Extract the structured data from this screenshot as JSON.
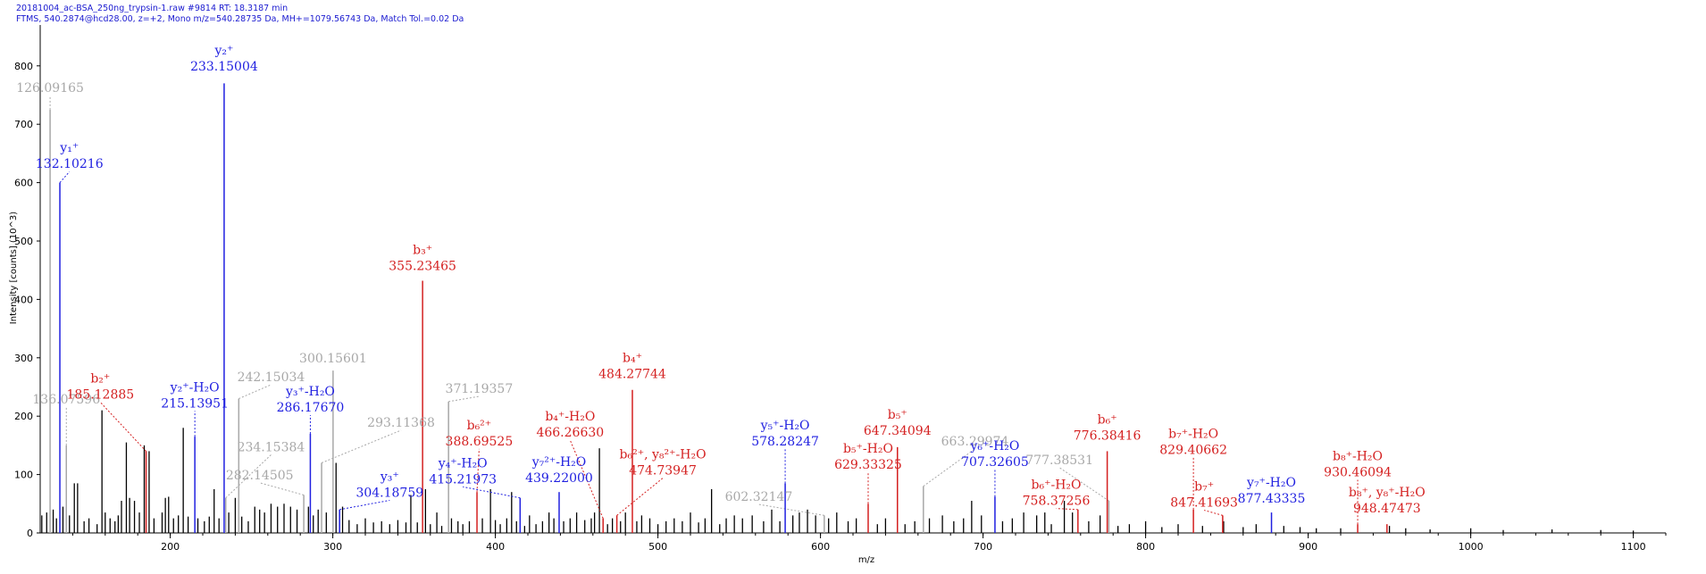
{
  "header": {
    "line1": "20181004_ac-BSA_250ng_trypsin-1.raw #9814  RT: 18.3187 min",
    "line2": "FTMS, 540.2874@hcd28.00, z=+2, Mono m/z=540.28735 Da, MH+=1079.56743 Da, Match Tol.=0.02 Da"
  },
  "colors": {
    "y_ion": "#2020e0",
    "b_ion": "#d42020",
    "unassigned": "#a8a8a8",
    "peak": "#000000"
  },
  "chart_data": {
    "type": "bar",
    "xlabel": "m/z",
    "ylabel": "Intensity [counts] (10^3)",
    "xlim": [
      120,
      1120
    ],
    "ylim": [
      0,
      870
    ],
    "xticks": [
      200,
      300,
      400,
      500,
      600,
      700,
      800,
      900,
      1000,
      1100
    ],
    "yticks": [
      0,
      100,
      200,
      300,
      400,
      500,
      600,
      700,
      800
    ],
    "peaks": [
      {
        "mz": 126.09165,
        "i": 725,
        "c": "g",
        "ion": "",
        "lbl": "126.09165",
        "lx": 126.09,
        "ly": 755
      },
      {
        "mz": 132.10216,
        "i": 600,
        "c": "y",
        "ion": "y₁⁺",
        "lbl": "132.10216",
        "lx": 138,
        "ly": 625
      },
      {
        "mz": 136.07596,
        "i": 150,
        "c": "g",
        "ion": "",
        "lbl": "136.07596",
        "lx": 136.08,
        "ly": 222
      },
      {
        "mz": 185.12885,
        "i": 140,
        "c": "b",
        "ion": "b₂⁺",
        "lbl": "185.12885",
        "lx": 157,
        "ly": 230
      },
      {
        "mz": 215.13951,
        "i": 165,
        "c": "y",
        "ion": "y₂⁺-H₂O",
        "lbl": "215.13951",
        "lx": 215.14,
        "ly": 215
      },
      {
        "mz": 233.15004,
        "i": 770,
        "c": "y",
        "ion": "y₂⁺",
        "lbl": "233.15004",
        "lx": 233.15,
        "ly": 792
      },
      {
        "mz": 234.15384,
        "i": 60,
        "c": "g",
        "ion": "",
        "lbl": "234.15384",
        "lx": 262,
        "ly": 140
      },
      {
        "mz": 242.15034,
        "i": 230,
        "c": "g",
        "ion": "",
        "lbl": "242.15034",
        "lx": 262,
        "ly": 260
      },
      {
        "mz": 282.14505,
        "i": 65,
        "c": "g",
        "ion": "",
        "lbl": "282.14505",
        "lx": 255,
        "ly": 92
      },
      {
        "mz": 286.1767,
        "i": 170,
        "c": "y",
        "ion": "y₃⁺-H₂O",
        "lbl": "286.17670",
        "lx": 286.18,
        "ly": 208
      },
      {
        "mz": 293.11368,
        "i": 120,
        "c": "g",
        "ion": "",
        "lbl": "293.11368",
        "lx": 342,
        "ly": 182
      },
      {
        "mz": 300.15601,
        "i": 278,
        "c": "g",
        "ion": "",
        "lbl": "300.15601",
        "lx": 300.16,
        "ly": 292
      },
      {
        "mz": 304.18759,
        "i": 40,
        "c": "y",
        "ion": "y₃⁺",
        "lbl": "304.18759",
        "lx": 335,
        "ly": 62
      },
      {
        "mz": 355.23465,
        "i": 432,
        "c": "b",
        "ion": "b₃⁺",
        "lbl": "355.23465",
        "lx": 355.23,
        "ly": 450
      },
      {
        "mz": 371.19357,
        "i": 225,
        "c": "g",
        "ion": "",
        "lbl": "371.19357",
        "lx": 390,
        "ly": 240
      },
      {
        "mz": 388.69525,
        "i": 70,
        "c": "b",
        "ion": "b₆²⁺",
        "lbl": "388.69525",
        "lx": 390,
        "ly": 150
      },
      {
        "mz": 415.21973,
        "i": 60,
        "c": "y",
        "ion": "y₄⁺-H₂O",
        "lbl": "415.21973",
        "lx": 380,
        "ly": 85
      },
      {
        "mz": 439.22,
        "i": 70,
        "c": "y",
        "ion": "y₇²⁺-H₂O",
        "lbl": "439.22000",
        "lx": 439.22,
        "ly": 87
      },
      {
        "mz": 466.2663,
        "i": 25,
        "c": "b",
        "ion": "b₄⁺-H₂O",
        "lbl": "466.26630",
        "lx": 446,
        "ly": 165
      },
      {
        "mz": 474.73947,
        "i": 30,
        "c": "b",
        "ion": "b₆²⁺, y₈²⁺-H₂O",
        "lbl": "474.73947",
        "lx": 503,
        "ly": 100
      },
      {
        "mz": 484.27744,
        "i": 245,
        "c": "b",
        "ion": "b₄⁺",
        "lbl": "484.27744",
        "lx": 484.28,
        "ly": 265
      },
      {
        "mz": 578.28247,
        "i": 85,
        "c": "y",
        "ion": "y₅⁺-H₂O",
        "lbl": "578.28247",
        "lx": 578.28,
        "ly": 150
      },
      {
        "mz": 602.32147,
        "i": 30,
        "c": "g",
        "ion": "",
        "lbl": "602.32147",
        "lx": 562,
        "ly": 55
      },
      {
        "mz": 629.33325,
        "i": 50,
        "c": "b",
        "ion": "b₅⁺-H₂O",
        "lbl": "629.33325",
        "lx": 629.33,
        "ly": 110
      },
      {
        "mz": 647.34094,
        "i": 147,
        "c": "b",
        "ion": "b₅⁺",
        "lbl": "647.34094",
        "lx": 647.34,
        "ly": 168
      },
      {
        "mz": 663.29974,
        "i": 80,
        "c": "g",
        "ion": "",
        "lbl": "663.29974",
        "lx": 695,
        "ly": 150
      },
      {
        "mz": 707.32605,
        "i": 62,
        "c": "y",
        "ion": "y₆⁺-H₂O",
        "lbl": "707.32605",
        "lx": 707.33,
        "ly": 115
      },
      {
        "mz": 758.37256,
        "i": 40,
        "c": "b",
        "ion": "b₆⁺-H₂O",
        "lbl": "758.37256",
        "lx": 745,
        "ly": 48
      },
      {
        "mz": 776.38416,
        "i": 140,
        "c": "b",
        "ion": "b₆⁺",
        "lbl": "776.38416",
        "lx": 776.38,
        "ly": 160
      },
      {
        "mz": 777.38531,
        "i": 55,
        "c": "g",
        "ion": "",
        "lbl": "777.38531",
        "lx": 747,
        "ly": 118
      },
      {
        "mz": 829.40662,
        "i": 40,
        "c": "b",
        "ion": "b₇⁺-H₂O",
        "lbl": "829.40662",
        "lx": 829.41,
        "ly": 135
      },
      {
        "mz": 847.41693,
        "i": 30,
        "c": "b",
        "ion": "b₇⁺",
        "lbl": "847.41693",
        "lx": 836,
        "ly": 45
      },
      {
        "mz": 877.43335,
        "i": 35,
        "c": "y",
        "ion": "y₇⁺-H₂O",
        "lbl": "877.43335",
        "lx": 877.43,
        "ly": 52
      },
      {
        "mz": 930.46094,
        "i": 15,
        "c": "b",
        "ion": "b₈⁺-H₂O",
        "lbl": "930.46094",
        "lx": 930.46,
        "ly": 97
      },
      {
        "mz": 948.47473,
        "i": 15,
        "c": "b",
        "ion": "b₈⁺, y₈⁺-H₂O",
        "lbl": "948.47473",
        "lx": 948.47,
        "ly": 35
      }
    ],
    "minor_peaks": [
      [
        121,
        30
      ],
      [
        124,
        35
      ],
      [
        128,
        40
      ],
      [
        130,
        25
      ],
      [
        134,
        45
      ],
      [
        138,
        30
      ],
      [
        141,
        85
      ],
      [
        143,
        85
      ],
      [
        147,
        20
      ],
      [
        150,
        25
      ],
      [
        155,
        15
      ],
      [
        158,
        210
      ],
      [
        160,
        35
      ],
      [
        163,
        25
      ],
      [
        166,
        20
      ],
      [
        168,
        30
      ],
      [
        170,
        55
      ],
      [
        173,
        155
      ],
      [
        175,
        60
      ],
      [
        178,
        55
      ],
      [
        181,
        35
      ],
      [
        184,
        150
      ],
      [
        187,
        140
      ],
      [
        190,
        25
      ],
      [
        195,
        35
      ],
      [
        197,
        60
      ],
      [
        199,
        62
      ],
      [
        202,
        25
      ],
      [
        205,
        30
      ],
      [
        208,
        180
      ],
      [
        211,
        28
      ],
      [
        217,
        25
      ],
      [
        221,
        20
      ],
      [
        224,
        28
      ],
      [
        227,
        75
      ],
      [
        230,
        25
      ],
      [
        236,
        35
      ],
      [
        240,
        60
      ],
      [
        244,
        28
      ],
      [
        248,
        20
      ],
      [
        252,
        45
      ],
      [
        255,
        40
      ],
      [
        258,
        35
      ],
      [
        262,
        50
      ],
      [
        266,
        45
      ],
      [
        270,
        50
      ],
      [
        274,
        45
      ],
      [
        278,
        40
      ],
      [
        285,
        45
      ],
      [
        288,
        30
      ],
      [
        291,
        40
      ],
      [
        296,
        35
      ],
      [
        302,
        120
      ],
      [
        306,
        45
      ],
      [
        310,
        22
      ],
      [
        315,
        15
      ],
      [
        320,
        25
      ],
      [
        325,
        18
      ],
      [
        330,
        20
      ],
      [
        335,
        15
      ],
      [
        340,
        22
      ],
      [
        345,
        18
      ],
      [
        348,
        65
      ],
      [
        352,
        18
      ],
      [
        357,
        75
      ],
      [
        360,
        15
      ],
      [
        364,
        35
      ],
      [
        367,
        12
      ],
      [
        373,
        25
      ],
      [
        377,
        20
      ],
      [
        380,
        15
      ],
      [
        384,
        20
      ],
      [
        392,
        25
      ],
      [
        397,
        75
      ],
      [
        400,
        22
      ],
      [
        403,
        15
      ],
      [
        407,
        25
      ],
      [
        410,
        70
      ],
      [
        413,
        20
      ],
      [
        418,
        12
      ],
      [
        421,
        30
      ],
      [
        425,
        15
      ],
      [
        429,
        20
      ],
      [
        433,
        35
      ],
      [
        436,
        25
      ],
      [
        442,
        20
      ],
      [
        446,
        25
      ],
      [
        450,
        35
      ],
      [
        455,
        22
      ],
      [
        459,
        25
      ],
      [
        461,
        35
      ],
      [
        464,
        145
      ],
      [
        469,
        15
      ],
      [
        472,
        25
      ],
      [
        477,
        20
      ],
      [
        480,
        35
      ],
      [
        487,
        20
      ],
      [
        490,
        30
      ],
      [
        495,
        25
      ],
      [
        500,
        15
      ],
      [
        505,
        20
      ],
      [
        510,
        25
      ],
      [
        515,
        20
      ],
      [
        520,
        35
      ],
      [
        525,
        18
      ],
      [
        529,
        25
      ],
      [
        533,
        75
      ],
      [
        538,
        15
      ],
      [
        542,
        25
      ],
      [
        547,
        30
      ],
      [
        552,
        25
      ],
      [
        558,
        30
      ],
      [
        565,
        20
      ],
      [
        570,
        40
      ],
      [
        575,
        20
      ],
      [
        583,
        30
      ],
      [
        587,
        35
      ],
      [
        592,
        40
      ],
      [
        597,
        30
      ],
      [
        605,
        25
      ],
      [
        610,
        35
      ],
      [
        617,
        20
      ],
      [
        622,
        25
      ],
      [
        635,
        15
      ],
      [
        640,
        25
      ],
      [
        652,
        15
      ],
      [
        658,
        20
      ],
      [
        667,
        25
      ],
      [
        675,
        30
      ],
      [
        682,
        20
      ],
      [
        688,
        25
      ],
      [
        693,
        55
      ],
      [
        699,
        30
      ],
      [
        712,
        20
      ],
      [
        718,
        25
      ],
      [
        725,
        35
      ],
      [
        733,
        30
      ],
      [
        738,
        35
      ],
      [
        742,
        15
      ],
      [
        750,
        55
      ],
      [
        755,
        35
      ],
      [
        765,
        20
      ],
      [
        772,
        30
      ],
      [
        783,
        12
      ],
      [
        790,
        15
      ],
      [
        800,
        20
      ],
      [
        810,
        10
      ],
      [
        820,
        15
      ],
      [
        835,
        12
      ],
      [
        848,
        20
      ],
      [
        860,
        10
      ],
      [
        868,
        15
      ],
      [
        885,
        12
      ],
      [
        895,
        10
      ],
      [
        905,
        8
      ],
      [
        920,
        8
      ],
      [
        950,
        12
      ],
      [
        960,
        8
      ],
      [
        975,
        6
      ],
      [
        1000,
        8
      ],
      [
        1020,
        5
      ],
      [
        1050,
        6
      ],
      [
        1080,
        5
      ],
      [
        1100,
        4
      ]
    ]
  }
}
